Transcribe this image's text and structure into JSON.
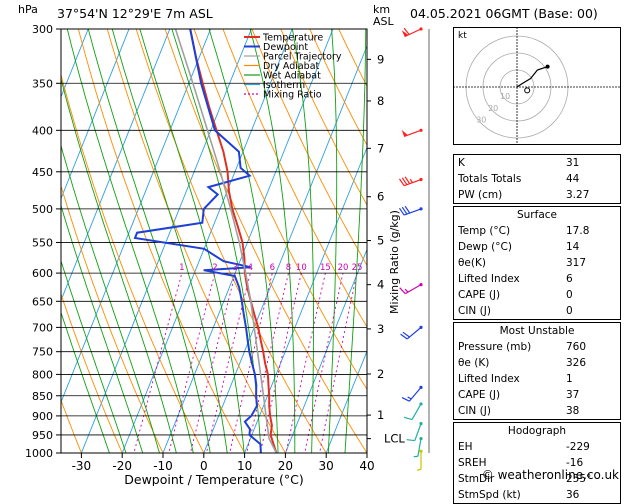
{
  "header": {
    "location": "37°54'N  12°29'E  7m  ASL",
    "datetime": "04.05.2021  06GMT  (Base: 00)",
    "hpa_label": "hPa",
    "km_label": "km",
    "asl_label": "ASL"
  },
  "chart_data": {
    "type": "skew-t",
    "xlabel": "Dewpoint / Temperature (°C)",
    "ylabel_right": "Mixing Ratio (g/kg)",
    "xlim": [
      -35,
      40
    ],
    "pressure_range": [
      1000,
      300
    ],
    "pressure_ticks": [
      "300",
      "350",
      "400",
      "450",
      "500",
      "550",
      "600",
      "650",
      "700",
      "750",
      "800",
      "850",
      "900",
      "950",
      "1000"
    ],
    "temp_ticks": [
      "-30",
      "-20",
      "-10",
      "0",
      "10",
      "20",
      "30",
      "40"
    ],
    "km_ticks": [
      {
        "label": "9",
        "p": 327
      },
      {
        "label": "8",
        "p": 368
      },
      {
        "label": "7",
        "p": 421
      },
      {
        "label": "6",
        "p": 483
      },
      {
        "label": "5",
        "p": 547
      },
      {
        "label": "4",
        "p": 620
      },
      {
        "label": "3",
        "p": 703
      },
      {
        "label": "2",
        "p": 799
      },
      {
        "label": "1",
        "p": 898
      },
      {
        "label": "LCL",
        "p": 960
      }
    ],
    "mixing_ratio_labels": [
      "1",
      "2",
      "3",
      "4",
      "6",
      "8",
      "10",
      "15",
      "20",
      "25"
    ],
    "legend": [
      "Temperature",
      "Dewpoint",
      "Parcel Trajectory",
      "Dry Adiabat",
      "Wet Adiabat",
      "Isotherm",
      "Mixing Ratio"
    ],
    "series": [
      {
        "name": "Temperature",
        "color": "#e03020",
        "points": [
          [
            1000,
            17.8
          ],
          [
            975,
            16.2
          ],
          [
            950,
            14.6
          ],
          [
            925,
            14.0
          ],
          [
            900,
            12.6
          ],
          [
            875,
            11.4
          ],
          [
            850,
            10.4
          ],
          [
            825,
            9.2
          ],
          [
            800,
            8.0
          ],
          [
            775,
            6.2
          ],
          [
            750,
            4.6
          ],
          [
            725,
            2.8
          ],
          [
            700,
            1.0
          ],
          [
            675,
            -1.2
          ],
          [
            650,
            -3.4
          ],
          [
            625,
            -5.6
          ],
          [
            600,
            -7.6
          ],
          [
            575,
            -9.2
          ],
          [
            550,
            -11.2
          ],
          [
            525,
            -14.0
          ],
          [
            500,
            -17.0
          ],
          [
            475,
            -19.6
          ],
          [
            450,
            -21.8
          ],
          [
            425,
            -24.8
          ],
          [
            400,
            -28.6
          ],
          [
            375,
            -32.6
          ],
          [
            350,
            -36.6
          ],
          [
            325,
            -40.8
          ],
          [
            300,
            -45.0
          ]
        ]
      },
      {
        "name": "Dewpoint",
        "color": "#1f3fd6",
        "points": [
          [
            1000,
            14.0
          ],
          [
            975,
            13.0
          ],
          [
            950,
            9.4
          ],
          [
            935,
            9.0
          ],
          [
            915,
            7.0
          ],
          [
            900,
            8.0
          ],
          [
            875,
            8.4
          ],
          [
            850,
            7.2
          ],
          [
            825,
            6.2
          ],
          [
            800,
            4.8
          ],
          [
            775,
            3.0
          ],
          [
            750,
            1.2
          ],
          [
            725,
            -0.4
          ],
          [
            700,
            -2.0
          ],
          [
            675,
            -3.8
          ],
          [
            650,
            -5.6
          ],
          [
            625,
            -7.6
          ],
          [
            605,
            -9.8
          ],
          [
            595,
            -18.0
          ],
          [
            590,
            -6.8
          ],
          [
            580,
            -14.0
          ],
          [
            560,
            -20.0
          ],
          [
            543,
            -38.0
          ],
          [
            535,
            -38.0
          ],
          [
            520,
            -23.0
          ],
          [
            500,
            -24.0
          ],
          [
            480,
            -22.0
          ],
          [
            470,
            -25.0
          ],
          [
            455,
            -16.0
          ],
          [
            445,
            -19.0
          ],
          [
            425,
            -21.0
          ],
          [
            400,
            -29.0
          ],
          [
            350,
            -37.0
          ],
          [
            300,
            -45.0
          ]
        ]
      },
      {
        "name": "Parcel Trajectory",
        "color": "#a0a0a0",
        "points": [
          [
            1000,
            17.8
          ],
          [
            960,
            14.6
          ],
          [
            900,
            11.6
          ],
          [
            850,
            9.0
          ],
          [
            800,
            6.2
          ],
          [
            750,
            3.2
          ],
          [
            700,
            0.0
          ],
          [
            650,
            -3.4
          ],
          [
            600,
            -7.4
          ],
          [
            550,
            -12.0
          ],
          [
            500,
            -17.4
          ],
          [
            450,
            -23.6
          ],
          [
            400,
            -30.8
          ],
          [
            350,
            -39.0
          ],
          [
            300,
            -48.6
          ]
        ]
      }
    ]
  },
  "hodograph": {
    "label": "kt",
    "ring_labels": [
      "10",
      "20",
      "30"
    ],
    "trace_kt": [
      [
        0,
        0
      ],
      [
        3,
        2
      ],
      [
        8,
        5
      ],
      [
        12,
        10
      ],
      [
        18,
        12
      ]
    ],
    "storm_motion_kt": [
      6,
      -2
    ]
  },
  "indices": {
    "top": [
      {
        "label": "K",
        "value": "31"
      },
      {
        "label": "Totals Totals",
        "value": "44"
      },
      {
        "label": "PW (cm)",
        "value": "3.27"
      }
    ],
    "surface": {
      "title": "Surface",
      "rows": [
        {
          "label": "Temp (°C)",
          "value": "17.8"
        },
        {
          "label": "Dewp (°C)",
          "value": "14"
        },
        {
          "label": "θe(K)",
          "value": "317"
        },
        {
          "label": "Lifted Index",
          "value": "6"
        },
        {
          "label": "CAPE (J)",
          "value": "0"
        },
        {
          "label": "CIN (J)",
          "value": "0"
        }
      ]
    },
    "most_unstable": {
      "title": "Most Unstable",
      "rows": [
        {
          "label": "Pressure (mb)",
          "value": "760"
        },
        {
          "label": "θe (K)",
          "value": "326"
        },
        {
          "label": "Lifted Index",
          "value": "1"
        },
        {
          "label": "CAPE (J)",
          "value": "37"
        },
        {
          "label": "CIN (J)",
          "value": "38"
        }
      ]
    },
    "hodograph_box": {
      "title": "Hodograph",
      "rows": [
        {
          "label": "EH",
          "value": "-229"
        },
        {
          "label": "SREH",
          "value": "-16"
        },
        {
          "label": "StmDir",
          "value": "255°"
        },
        {
          "label": "StmSpd (kt)",
          "value": "36"
        }
      ]
    }
  },
  "wind_barbs": [
    {
      "p": 300,
      "color": "#ff2020",
      "dir": 245,
      "kt": 60
    },
    {
      "p": 400,
      "color": "#ff2020",
      "dir": 250,
      "kt": 50
    },
    {
      "p": 460,
      "color": "#ff2020",
      "dir": 250,
      "kt": 35
    },
    {
      "p": 500,
      "color": "#2040e0",
      "dir": 250,
      "kt": 30
    },
    {
      "p": 620,
      "color": "#d000b0",
      "dir": 240,
      "kt": 15
    },
    {
      "p": 700,
      "color": "#2040e0",
      "dir": 230,
      "kt": 20
    },
    {
      "p": 830,
      "color": "#2040e0",
      "dir": 220,
      "kt": 15
    },
    {
      "p": 870,
      "color": "#20b0a0",
      "dir": 210,
      "kt": 10
    },
    {
      "p": 920,
      "color": "#20b0a0",
      "dir": 200,
      "kt": 10
    },
    {
      "p": 960,
      "color": "#20b0a0",
      "dir": 190,
      "kt": 5
    },
    {
      "p": 995,
      "color": "#c8c800",
      "dir": 180,
      "kt": 5
    }
  ],
  "colors": {
    "temperature": "#e03020",
    "dewpoint": "#1f3fd6",
    "parcel": "#a0a0a0",
    "dry_adiabat": "#ff8c00",
    "wet_adiabat": "#10a010",
    "isotherm": "#30a0e0",
    "mixing_ratio": "#d000b0"
  },
  "footer": "© weatheronline.co.uk"
}
